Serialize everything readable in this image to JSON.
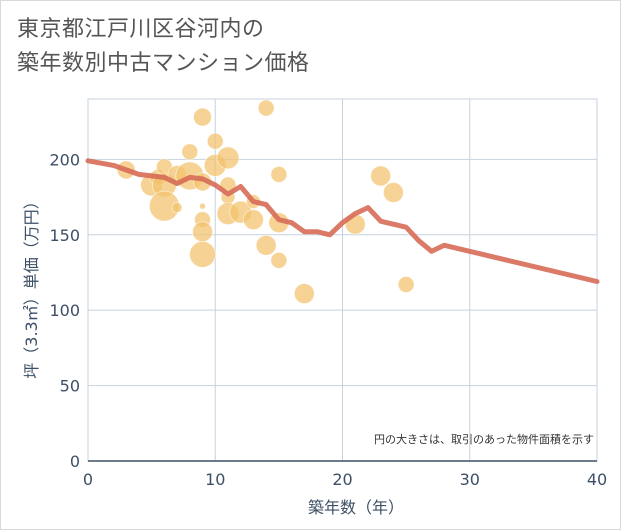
{
  "title": {
    "line1": "東京都江戸川区谷河内の",
    "line2": "築年数別中古マンション価格"
  },
  "chart_data": {
    "type": "scatter",
    "xlabel": "築年数（年）",
    "ylabel": "坪（3.3㎡）単価（万円）",
    "xlim": [
      0,
      40
    ],
    "ylim": [
      0,
      240
    ],
    "xticks": [
      "0",
      "10",
      "20",
      "30",
      "40"
    ],
    "yticks": [
      "0",
      "50",
      "100",
      "150",
      "200"
    ],
    "grid": true,
    "note": "円の大きさは、取引のあった物件面積を示す",
    "colors": {
      "bubble": "#f3c26b",
      "line": "#d66b56",
      "grid": "#c7d3de"
    },
    "bubbles": [
      {
        "x": 3,
        "y": 193,
        "r": 9
      },
      {
        "x": 5,
        "y": 183,
        "r": 11
      },
      {
        "x": 5.5,
        "y": 188,
        "r": 8
      },
      {
        "x": 6,
        "y": 195,
        "r": 8
      },
      {
        "x": 6,
        "y": 183,
        "r": 12
      },
      {
        "x": 6,
        "y": 169,
        "r": 15
      },
      {
        "x": 7,
        "y": 190,
        "r": 9
      },
      {
        "x": 7,
        "y": 168,
        "r": 5
      },
      {
        "x": 8,
        "y": 205,
        "r": 8
      },
      {
        "x": 8,
        "y": 189,
        "r": 14
      },
      {
        "x": 9,
        "y": 228,
        "r": 9
      },
      {
        "x": 9,
        "y": 185,
        "r": 9
      },
      {
        "x": 9,
        "y": 169,
        "r": 3
      },
      {
        "x": 9,
        "y": 160,
        "r": 8
      },
      {
        "x": 9,
        "y": 152,
        "r": 10
      },
      {
        "x": 9,
        "y": 137,
        "r": 13
      },
      {
        "x": 10,
        "y": 212,
        "r": 8
      },
      {
        "x": 10,
        "y": 196,
        "r": 11
      },
      {
        "x": 11,
        "y": 201,
        "r": 11
      },
      {
        "x": 11,
        "y": 183,
        "r": 8
      },
      {
        "x": 11,
        "y": 175,
        "r": 7
      },
      {
        "x": 11,
        "y": 164,
        "r": 11
      },
      {
        "x": 12,
        "y": 165,
        "r": 11
      },
      {
        "x": 13,
        "y": 172,
        "r": 7
      },
      {
        "x": 13,
        "y": 160,
        "r": 10
      },
      {
        "x": 14,
        "y": 234,
        "r": 8
      },
      {
        "x": 14,
        "y": 143,
        "r": 10
      },
      {
        "x": 15,
        "y": 190,
        "r": 8
      },
      {
        "x": 15,
        "y": 158,
        "r": 10
      },
      {
        "x": 15,
        "y": 133,
        "r": 8
      },
      {
        "x": 17,
        "y": 111,
        "r": 10
      },
      {
        "x": 21,
        "y": 157,
        "r": 10
      },
      {
        "x": 23,
        "y": 189,
        "r": 10
      },
      {
        "x": 24,
        "y": 178,
        "r": 10
      },
      {
        "x": 25,
        "y": 117,
        "r": 8
      }
    ],
    "series": [
      {
        "x": [
          0,
          2,
          4,
          6,
          7,
          8,
          9,
          10,
          11,
          12,
          13,
          14,
          15,
          16,
          17,
          18,
          19,
          20,
          21,
          22,
          23,
          25,
          26,
          27,
          28,
          40
        ],
        "y": [
          199,
          196,
          190,
          188,
          184,
          188,
          187,
          183,
          177,
          182,
          172,
          170,
          160,
          158,
          152,
          152,
          150,
          158,
          164,
          168,
          159,
          155,
          146,
          139,
          143,
          119
        ]
      }
    ]
  }
}
